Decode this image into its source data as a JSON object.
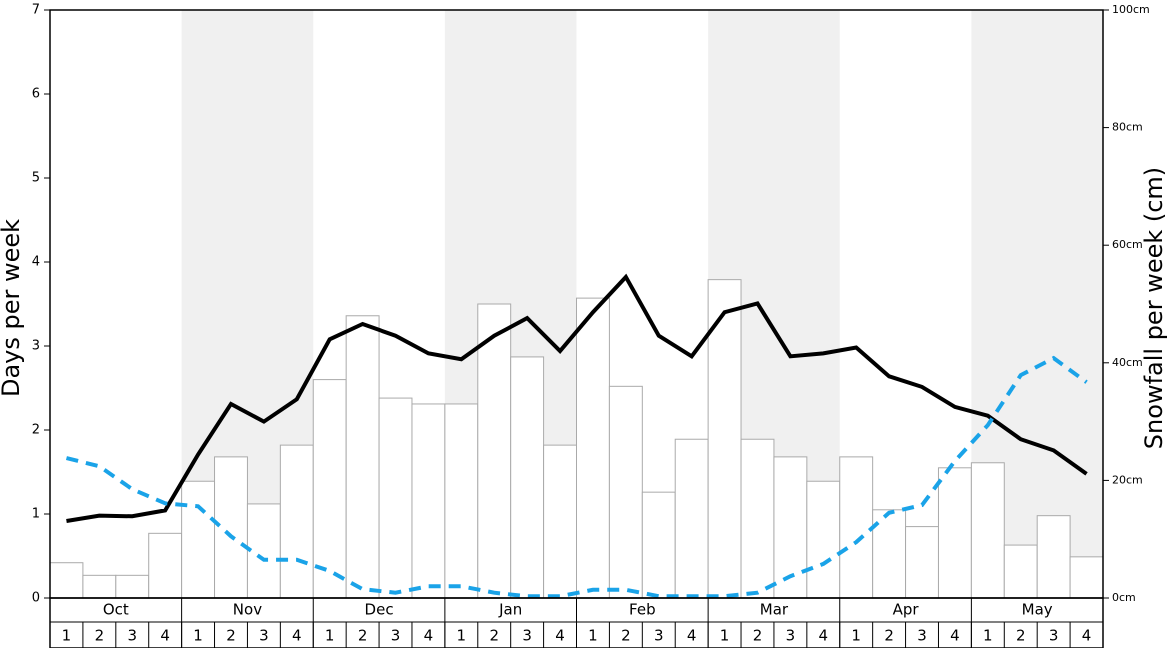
{
  "chart_data": {
    "type": "bar-line",
    "y_label": "Days per week",
    "y2_label": "Snowfall per week (cm)",
    "months": [
      "Oct",
      "Nov",
      "Dec",
      "Jan",
      "Feb",
      "Mar",
      "Apr",
      "May"
    ],
    "categories": [
      "1",
      "2",
      "3",
      "4",
      "1",
      "2",
      "3",
      "4",
      "1",
      "2",
      "3",
      "4",
      "1",
      "2",
      "3",
      "4",
      "1",
      "2",
      "3",
      "4",
      "1",
      "2",
      "3",
      "4",
      "1",
      "2",
      "3",
      "4",
      "1",
      "2",
      "3",
      "4"
    ],
    "ylim": [
      0,
      7
    ],
    "yticks": [
      0,
      1,
      2,
      3,
      4,
      5,
      6,
      7
    ],
    "y2lim": [
      0,
      100
    ],
    "y2ticks": [
      {
        "value": 0,
        "label": "0cm"
      },
      {
        "value": 20,
        "label": "20cm"
      },
      {
        "value": 40,
        "label": "40cm"
      },
      {
        "value": 60,
        "label": "60cm"
      },
      {
        "value": 80,
        "label": "80cm"
      },
      {
        "value": 100,
        "label": "100cm"
      }
    ],
    "shaded_months": [
      "Nov",
      "Jan",
      "Mar",
      "May"
    ],
    "series": [
      {
        "kind": "bar",
        "color": "#ffffff",
        "stroke": "#aaaaaa",
        "values": [
          0.42,
          0.27,
          0.27,
          0.77,
          1.39,
          1.68,
          1.12,
          1.82,
          2.6,
          3.36,
          2.38,
          2.31,
          2.31,
          3.5,
          2.87,
          1.82,
          3.57,
          2.52,
          1.26,
          1.89,
          3.79,
          1.89,
          1.68,
          1.39,
          1.68,
          1.05,
          0.85,
          1.55,
          1.61,
          0.63,
          0.98,
          0.49
        ]
      },
      {
        "kind": "line",
        "axis": "y2",
        "color": "#000000",
        "dashed": false,
        "values": [
          13.1,
          14.0,
          13.9,
          14.9,
          24.4,
          33.0,
          30.0,
          33.8,
          44.0,
          46.6,
          44.6,
          41.6,
          40.6,
          44.6,
          47.6,
          42.0,
          48.6,
          54.6,
          44.6,
          41.1,
          48.6,
          50.1,
          41.1,
          41.6,
          42.6,
          37.7,
          35.9,
          32.5,
          31.0,
          27.0,
          25.1,
          21.1
        ]
      },
      {
        "kind": "line",
        "axis": "y2",
        "color": "#1aa3e8",
        "dashed": true,
        "values": [
          23.8,
          22.4,
          18.5,
          16.1,
          15.6,
          10.5,
          6.5,
          6.5,
          4.6,
          1.5,
          0.9,
          2.0,
          2.0,
          0.9,
          0.3,
          0.3,
          1.4,
          1.4,
          0.3,
          0.3,
          0.3,
          0.9,
          3.7,
          5.8,
          9.5,
          14.5,
          15.8,
          23.3,
          29.4,
          37.9,
          40.8,
          36.7
        ]
      }
    ]
  }
}
